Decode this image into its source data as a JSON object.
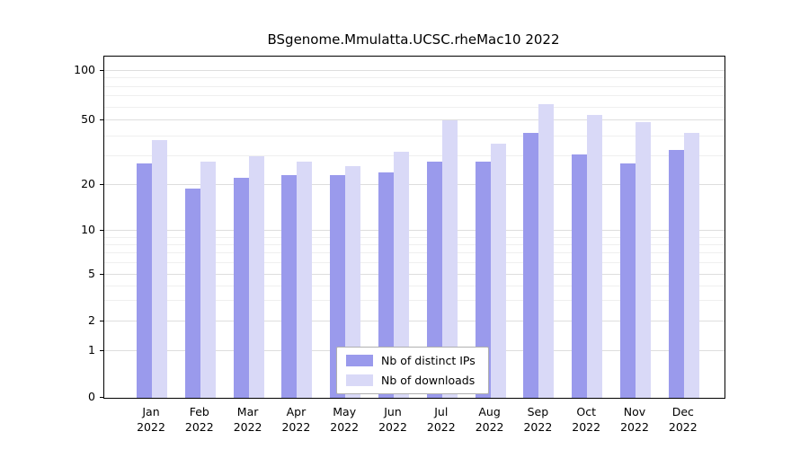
{
  "title": "BSgenome.Mmulatta.UCSC.rheMac10 2022",
  "chart_data": {
    "type": "bar",
    "title": "BSgenome.Mmulatta.UCSC.rheMac10 2022",
    "categories": [
      "Jan",
      "Feb",
      "Mar",
      "Apr",
      "May",
      "Jun",
      "Jul",
      "Aug",
      "Sep",
      "Oct",
      "Nov",
      "Dec"
    ],
    "year_label": "2022",
    "series": [
      {
        "name": "Nb of distinct IPs",
        "color": "#9a9aec",
        "values": [
          27,
          19,
          22,
          23,
          23,
          24,
          28,
          28,
          42,
          31,
          27,
          33
        ]
      },
      {
        "name": "Nb of downloads",
        "color": "#d9d9f7",
        "values": [
          38,
          28,
          30,
          28,
          26,
          32,
          50,
          36,
          63,
          54,
          49,
          42
        ]
      }
    ],
    "xlabel": "",
    "ylabel": "",
    "yticks": [
      0,
      1,
      2,
      5,
      10,
      20,
      50,
      100
    ],
    "minor_gridlines": [
      3,
      4,
      6,
      7,
      8,
      9,
      30,
      40,
      60,
      70,
      80,
      90
    ],
    "yscale": "log-with-zero-baseline",
    "ylim_top_value": 115,
    "grid": true,
    "legend_position": "inside-bottom-center"
  }
}
